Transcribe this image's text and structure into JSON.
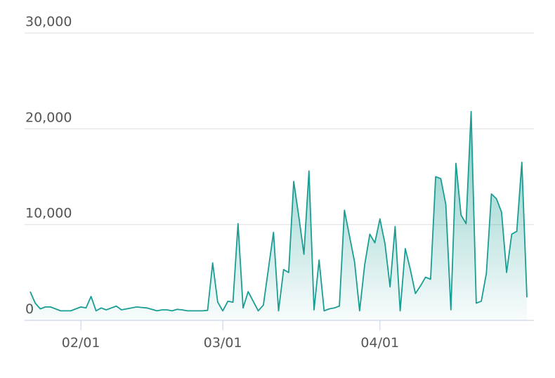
{
  "chart_data": {
    "type": "area",
    "categories": [
      null,
      null,
      null,
      null,
      null,
      null,
      null,
      null,
      null,
      null,
      "02/01",
      null,
      null,
      null,
      null,
      null,
      null,
      null,
      null,
      null,
      null,
      null,
      null,
      null,
      null,
      null,
      null,
      null,
      null,
      null,
      null,
      null,
      null,
      null,
      null,
      null,
      null,
      null,
      "03/01",
      null,
      null,
      null,
      null,
      null,
      null,
      null,
      null,
      null,
      null,
      null,
      null,
      null,
      null,
      null,
      null,
      null,
      null,
      null,
      null,
      null,
      null,
      null,
      null,
      null,
      null,
      null,
      null,
      null,
      null,
      "04/01",
      null,
      null,
      null,
      null,
      null,
      null,
      null,
      null,
      null,
      null,
      null,
      null,
      null,
      null,
      null,
      null,
      null,
      null,
      null,
      null,
      null,
      null,
      null,
      null,
      null,
      null,
      null,
      null,
      null
    ],
    "values": [
      3000,
      1800,
      1200,
      1400,
      1400,
      1200,
      1000,
      1000,
      1000,
      1200,
      1400,
      1300,
      2500,
      1000,
      1300,
      1100,
      1300,
      1500,
      1100,
      1200,
      1300,
      1400,
      1350,
      1300,
      1150,
      1000,
      1100,
      1100,
      1000,
      1150,
      1100,
      1000,
      1000,
      1000,
      1000,
      1050,
      6000,
      1900,
      1000,
      2000,
      1900,
      10100,
      1300,
      3000,
      2000,
      1000,
      1600,
      5400,
      9200,
      1000,
      5300,
      5000,
      14500,
      10800,
      6900,
      15600,
      1100,
      6300,
      1000,
      1200,
      1300,
      1500,
      11500,
      8800,
      6100,
      1000,
      5800,
      9000,
      8100,
      10600,
      8000,
      3500,
      9800,
      1000,
      7500,
      5300,
      2800,
      3600,
      4500,
      4300,
      15000,
      14800,
      12100,
      1100,
      16400,
      11000,
      10100,
      21800,
      1800,
      2000,
      4900,
      13200,
      12700,
      11300,
      5000,
      9000,
      9300,
      16500,
      2400
    ],
    "color": "#1a9e94",
    "ylim": [
      0,
      30000
    ],
    "yticks": [
      0,
      {
        "value": 10000,
        "label": "10,000"
      },
      {
        "value": 20000,
        "label": "20,000"
      },
      {
        "value": 30000,
        "label": "30,000"
      }
    ],
    "grid": true
  }
}
